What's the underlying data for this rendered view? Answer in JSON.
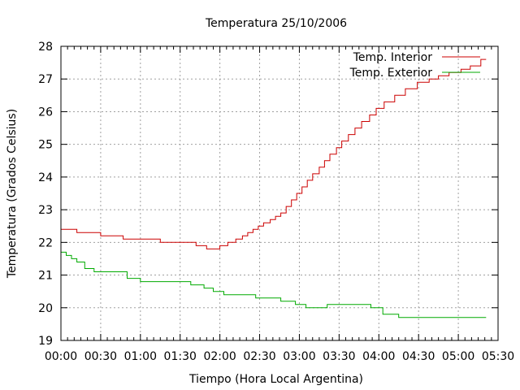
{
  "chart_data": {
    "type": "line",
    "title": "Temperatura 25/10/2006",
    "xlabel": "Tiempo (Hora Local Argentina)",
    "ylabel": "Temperatura (Grados Celsius)",
    "xlim": [
      "00:00",
      "05:30"
    ],
    "ylim": [
      19,
      28
    ],
    "x_ticks": [
      "00:00",
      "00:30",
      "01:00",
      "01:30",
      "02:00",
      "02:30",
      "03:00",
      "03:30",
      "04:00",
      "04:30",
      "05:00",
      "05:30"
    ],
    "y_ticks": [
      19,
      20,
      21,
      22,
      23,
      24,
      25,
      26,
      27,
      28
    ],
    "grid": true,
    "legend_position": "top-right",
    "line_shape": "step",
    "series": [
      {
        "name": "Temp. Interior",
        "color": "#cc0000",
        "points": [
          [
            "00:00",
            22.4
          ],
          [
            "00:12",
            22.3
          ],
          [
            "00:30",
            22.2
          ],
          [
            "00:47",
            22.1
          ],
          [
            "01:15",
            22.0
          ],
          [
            "01:42",
            21.9
          ],
          [
            "01:50",
            21.8
          ],
          [
            "02:00",
            21.9
          ],
          [
            "02:06",
            22.0
          ],
          [
            "02:12",
            22.1
          ],
          [
            "02:17",
            22.2
          ],
          [
            "02:21",
            22.3
          ],
          [
            "02:25",
            22.4
          ],
          [
            "02:29",
            22.5
          ],
          [
            "02:33",
            22.6
          ],
          [
            "02:38",
            22.7
          ],
          [
            "02:42",
            22.8
          ],
          [
            "02:46",
            22.9
          ],
          [
            "02:50",
            23.1
          ],
          [
            "02:54",
            23.3
          ],
          [
            "02:58",
            23.5
          ],
          [
            "03:02",
            23.7
          ],
          [
            "03:06",
            23.9
          ],
          [
            "03:10",
            24.1
          ],
          [
            "03:15",
            24.3
          ],
          [
            "03:19",
            24.5
          ],
          [
            "03:23",
            24.7
          ],
          [
            "03:28",
            24.9
          ],
          [
            "03:32",
            25.1
          ],
          [
            "03:37",
            25.3
          ],
          [
            "03:42",
            25.5
          ],
          [
            "03:47",
            25.7
          ],
          [
            "03:53",
            25.9
          ],
          [
            "03:58",
            26.1
          ],
          [
            "04:04",
            26.3
          ],
          [
            "04:12",
            26.5
          ],
          [
            "04:20",
            26.7
          ],
          [
            "04:29",
            26.9
          ],
          [
            "04:38",
            27.0
          ],
          [
            "04:45",
            27.1
          ],
          [
            "04:53",
            27.2
          ],
          [
            "05:02",
            27.3
          ],
          [
            "05:09",
            27.4
          ],
          [
            "05:17",
            27.6
          ],
          [
            "05:21",
            27.6
          ]
        ]
      },
      {
        "name": "Temp. Exterior",
        "color": "#00aa00",
        "points": [
          [
            "00:00",
            21.7
          ],
          [
            "00:04",
            21.6
          ],
          [
            "00:08",
            21.5
          ],
          [
            "00:12",
            21.4
          ],
          [
            "00:18",
            21.2
          ],
          [
            "00:25",
            21.1
          ],
          [
            "00:50",
            20.9
          ],
          [
            "01:00",
            20.8
          ],
          [
            "01:38",
            20.7
          ],
          [
            "01:48",
            20.6
          ],
          [
            "01:55",
            20.5
          ],
          [
            "02:03",
            20.4
          ],
          [
            "02:27",
            20.3
          ],
          [
            "02:46",
            20.2
          ],
          [
            "02:57",
            20.1
          ],
          [
            "03:05",
            20.0
          ],
          [
            "03:21",
            20.1
          ],
          [
            "03:54",
            20.0
          ],
          [
            "04:03",
            19.8
          ],
          [
            "04:15",
            19.7
          ],
          [
            "05:21",
            19.7
          ]
        ]
      }
    ]
  }
}
